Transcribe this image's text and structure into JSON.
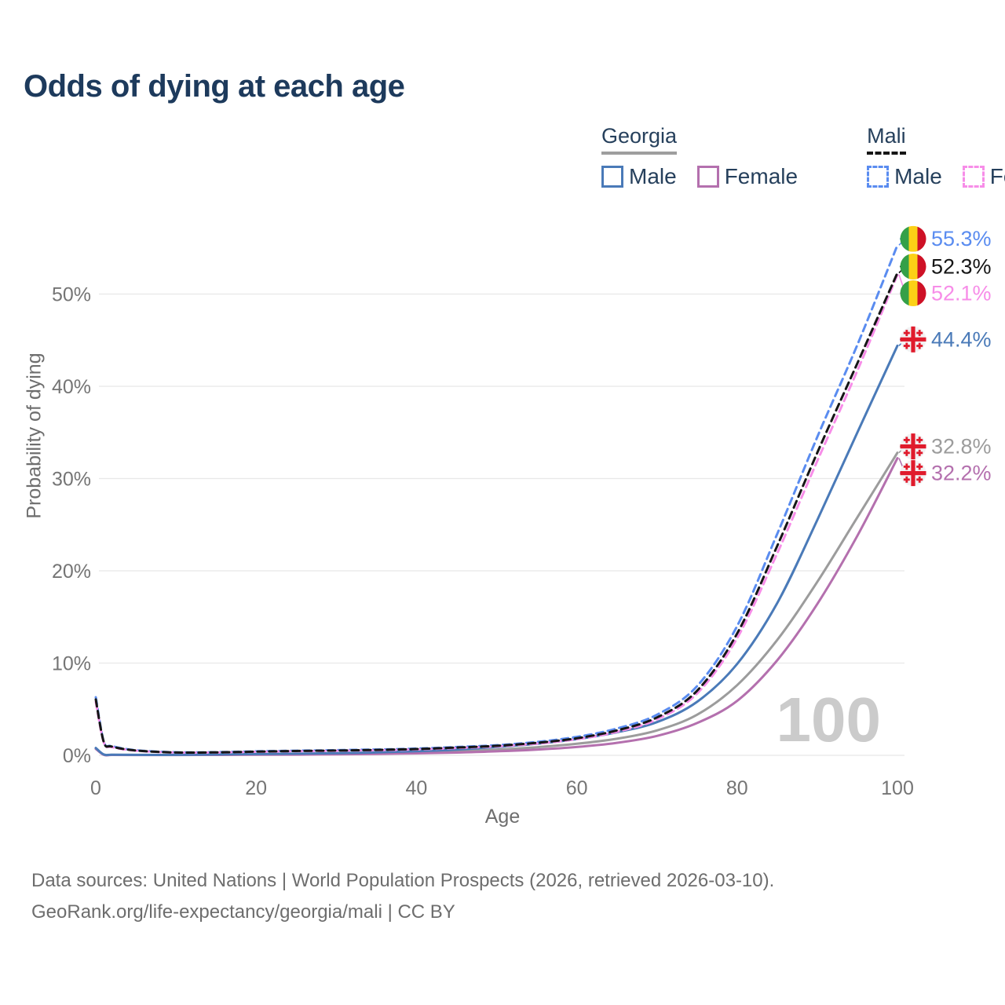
{
  "title": "Odds of dying at each age",
  "watermark": "100",
  "colors": {
    "title": "#1d3a5c",
    "grid": "#e8e8e8",
    "tick_text": "#757575",
    "footer_text": "#6d6d6d",
    "watermark": "#cbcbcb",
    "georgia_male": "#4a7ab8",
    "georgia_female": "#b470ae",
    "georgia_both": "#9c9c9c",
    "mali_male": "#5a8cf0",
    "mali_female": "#f78de8",
    "mali_both": "#161616",
    "mali_flag_green": "#35a048",
    "mali_flag_yellow": "#fcd116",
    "mali_flag_red": "#ce1126",
    "georgia_flag_red": "#e01b2c"
  },
  "legend": {
    "groups": [
      {
        "country": "Georgia",
        "items": [
          {
            "label": "Male",
            "color_key": "georgia_male",
            "style": "solid"
          },
          {
            "label": "Female",
            "color_key": "georgia_female",
            "style": "solid"
          }
        ]
      },
      {
        "country": "Mali",
        "items": [
          {
            "label": "Male",
            "color_key": "mali_male",
            "style": "dashed"
          },
          {
            "label": "Female",
            "color_key": "mali_female",
            "style": "dashed"
          }
        ]
      }
    ]
  },
  "chart_data": {
    "type": "line",
    "title": "Odds of dying at each age",
    "xlabel": "Age",
    "ylabel": "Probability of dying",
    "x_ticks": [
      0,
      20,
      40,
      60,
      80,
      100
    ],
    "y_ticks": [
      "0%",
      "10%",
      "20%",
      "30%",
      "40%",
      "50%"
    ],
    "xlim": [
      0,
      100
    ],
    "ylim_percent": [
      0,
      57
    ],
    "grid": "horizontal",
    "legend_position": "top-right",
    "ages": [
      0,
      1,
      2,
      5,
      10,
      15,
      20,
      25,
      30,
      35,
      40,
      45,
      50,
      55,
      60,
      65,
      70,
      75,
      80,
      85,
      90,
      95,
      100
    ],
    "series": [
      {
        "name": "Georgia (both sexes)",
        "country": "georgia",
        "style": "solid",
        "color_key": "georgia_both",
        "values": [
          0.75,
          0.07,
          0.05,
          0.04,
          0.04,
          0.06,
          0.1,
          0.13,
          0.17,
          0.23,
          0.32,
          0.44,
          0.62,
          0.88,
          1.25,
          1.8,
          2.7,
          4.4,
          7.6,
          12.5,
          18.8,
          25.8,
          32.8
        ]
      },
      {
        "name": "Georgia Female",
        "country": "georgia",
        "style": "solid",
        "color_key": "georgia_female",
        "values": [
          0.7,
          0.05,
          0.04,
          0.03,
          0.03,
          0.04,
          0.06,
          0.08,
          0.11,
          0.15,
          0.21,
          0.3,
          0.43,
          0.62,
          0.9,
          1.35,
          2.1,
          3.5,
          5.9,
          10.3,
          16.4,
          23.8,
          32.2
        ]
      },
      {
        "name": "Georgia Male",
        "country": "georgia",
        "style": "solid",
        "color_key": "georgia_male",
        "values": [
          0.8,
          0.09,
          0.06,
          0.05,
          0.05,
          0.09,
          0.14,
          0.18,
          0.24,
          0.32,
          0.45,
          0.62,
          0.9,
          1.25,
          1.75,
          2.5,
          3.6,
          5.8,
          9.9,
          16.5,
          25.5,
          35.0,
          44.4
        ]
      },
      {
        "name": "Mali Male",
        "country": "mali",
        "style": "dashed",
        "color_key": "mali_male",
        "values": [
          6.3,
          1.5,
          1.0,
          0.55,
          0.33,
          0.34,
          0.43,
          0.5,
          0.56,
          0.63,
          0.73,
          0.9,
          1.1,
          1.45,
          2.0,
          2.9,
          4.4,
          7.5,
          14.0,
          24.0,
          34.5,
          44.5,
          55.3
        ]
      },
      {
        "name": "Mali Female",
        "country": "mali",
        "style": "dashed",
        "color_key": "mali_female",
        "values": [
          5.8,
          1.4,
          0.9,
          0.5,
          0.3,
          0.31,
          0.38,
          0.44,
          0.49,
          0.55,
          0.64,
          0.79,
          0.97,
          1.27,
          1.75,
          2.55,
          3.9,
          6.7,
          12.7,
          21.9,
          31.9,
          41.7,
          52.1
        ]
      },
      {
        "name": "Mali (both sexes)",
        "country": "mali",
        "style": "dashed",
        "color_key": "mali_both",
        "values": [
          6.05,
          1.45,
          0.95,
          0.52,
          0.31,
          0.32,
          0.4,
          0.47,
          0.52,
          0.59,
          0.68,
          0.84,
          1.03,
          1.35,
          1.85,
          2.7,
          4.1,
          7.0,
          13.2,
          22.7,
          32.8,
          42.5,
          52.3
        ]
      }
    ]
  },
  "end_labels": [
    {
      "series": "Mali Male",
      "flag": "mali",
      "label": "55.3%"
    },
    {
      "series": "Mali (both sexes)",
      "flag": "mali",
      "label": "52.3%"
    },
    {
      "series": "Mali Female",
      "flag": "mali",
      "label": "52.1%"
    },
    {
      "series": "Georgia Male",
      "flag": "georgia",
      "label": "44.4%"
    },
    {
      "series": "Georgia (both sexes)",
      "flag": "georgia",
      "label": "32.8%"
    },
    {
      "series": "Georgia Female",
      "flag": "georgia",
      "label": "32.2%"
    }
  ],
  "footer": {
    "line1": "Data sources: United Nations | World Population Prospects (2026, retrieved 2026-03-10).",
    "line2": "GeoRank.org/life-expectancy/georgia/mali | CC BY"
  }
}
